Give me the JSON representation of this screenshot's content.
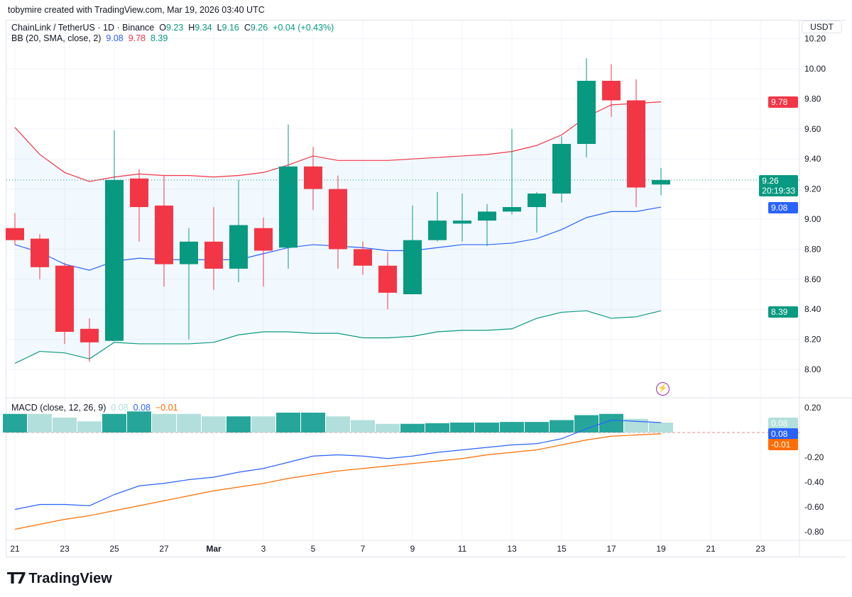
{
  "header": {
    "credit": "tobymire created with TradingView.com, Mar 19, 2026 03:40 UTC"
  },
  "legend": {
    "symbol": "ChainLink / TetherUS · 1D · Binance",
    "o_label": "O",
    "o": "9.23",
    "h_label": "H",
    "h": "9.34",
    "l_label": "L",
    "l": "9.16",
    "c_label": "C",
    "c": "9.26",
    "change": "+0.04 (+0.43%)",
    "bb_label": "BB (20, SMA, close, 2)",
    "bb_mid": "9.08",
    "bb_up": "9.78",
    "bb_low": "8.39",
    "macd_label": "MACD (close, 12, 26, 9)",
    "macd_hist": "0.08",
    "macd_line": "0.08",
    "macd_signal": "−0.01"
  },
  "axis": {
    "currency": "USDT",
    "tags": {
      "upper": "9.78",
      "price": "9.26",
      "countdown": "20:19:33",
      "mid": "9.08",
      "lower": "8.39",
      "macd_hist": "0.08",
      "macd_line": "0.08",
      "macd_signal": "-0.01"
    }
  },
  "logo": {
    "text": "TradingView"
  },
  "colors": {
    "up": "#089981",
    "down": "#f23645",
    "mid": "#2962ff",
    "signal": "#ff6d00",
    "hist_dark": "#26a69a",
    "hist_light": "#b2dfdb"
  },
  "chart_data": [
    {
      "type": "candlestick",
      "title": "ChainLink / TetherUS · 1D · Binance",
      "ylim": [
        7.8,
        10.25
      ],
      "price_ticks": [
        "8.00",
        "8.20",
        "8.40",
        "8.60",
        "8.80",
        "9.00",
        "9.20",
        "9.40",
        "9.60",
        "9.80",
        "10.00",
        "10.20"
      ],
      "x_ticks": [
        "21",
        "23",
        "25",
        "27",
        "Mar",
        "3",
        "5",
        "7",
        "9",
        "11",
        "13",
        "15",
        "17",
        "19",
        "21",
        "23"
      ],
      "dates": [
        "Feb 21",
        "Feb 22",
        "Feb 23",
        "Feb 24",
        "Feb 25",
        "Feb 26",
        "Feb 27",
        "Feb 28",
        "Mar 1",
        "Mar 2",
        "Mar 3",
        "Mar 4",
        "Mar 5",
        "Mar 6",
        "Mar 7",
        "Mar 8",
        "Mar 9",
        "Mar 10",
        "Mar 11",
        "Mar 12",
        "Mar 13",
        "Mar 14",
        "Mar 15",
        "Mar 16",
        "Mar 17",
        "Mar 18",
        "Mar 19"
      ],
      "ohlc": [
        [
          8.94,
          9.04,
          8.83,
          8.86
        ],
        [
          8.87,
          8.9,
          8.6,
          8.68
        ],
        [
          8.69,
          8.71,
          8.17,
          8.25
        ],
        [
          8.27,
          8.34,
          8.05,
          8.18
        ],
        [
          8.19,
          9.59,
          8.19,
          9.26
        ],
        [
          9.27,
          9.33,
          8.85,
          9.08
        ],
        [
          9.09,
          9.29,
          8.55,
          8.7
        ],
        [
          8.7,
          8.94,
          8.2,
          8.85
        ],
        [
          8.85,
          9.08,
          8.53,
          8.67
        ],
        [
          8.67,
          9.26,
          8.58,
          8.96
        ],
        [
          8.94,
          9.01,
          8.55,
          8.79
        ],
        [
          8.81,
          9.63,
          8.67,
          9.35
        ],
        [
          9.35,
          9.48,
          9.06,
          9.2
        ],
        [
          9.2,
          9.29,
          8.67,
          8.8
        ],
        [
          8.8,
          8.85,
          8.63,
          8.69
        ],
        [
          8.69,
          8.78,
          8.4,
          8.51
        ],
        [
          8.5,
          9.09,
          8.5,
          8.86
        ],
        [
          8.86,
          9.18,
          8.85,
          8.99
        ],
        [
          8.97,
          9.17,
          8.85,
          8.99
        ],
        [
          8.99,
          9.1,
          8.82,
          9.05
        ],
        [
          9.05,
          9.6,
          9.03,
          9.08
        ],
        [
          9.08,
          9.18,
          8.91,
          9.17
        ],
        [
          9.17,
          9.55,
          9.11,
          9.5
        ],
        [
          9.5,
          10.07,
          9.41,
          9.92
        ],
        [
          9.92,
          10.03,
          9.68,
          9.79
        ],
        [
          9.79,
          9.93,
          9.08,
          9.21
        ],
        [
          9.23,
          9.34,
          9.16,
          9.26
        ]
      ],
      "bb_upper": [
        9.61,
        9.43,
        9.31,
        9.25,
        9.28,
        9.3,
        9.29,
        9.29,
        9.28,
        9.29,
        9.31,
        9.36,
        9.42,
        9.39,
        9.39,
        9.39,
        9.4,
        9.41,
        9.42,
        9.43,
        9.45,
        9.49,
        9.56,
        9.68,
        9.76,
        9.77,
        9.78
      ],
      "bb_mid": [
        8.83,
        8.78,
        8.7,
        8.66,
        8.72,
        8.74,
        8.73,
        8.73,
        8.73,
        8.73,
        8.77,
        8.81,
        8.83,
        8.82,
        8.81,
        8.79,
        8.79,
        8.81,
        8.83,
        8.83,
        8.84,
        8.87,
        8.93,
        9.01,
        9.05,
        9.05,
        9.08
      ],
      "bb_lower": [
        8.04,
        8.12,
        8.11,
        8.07,
        8.18,
        8.17,
        8.17,
        8.17,
        8.18,
        8.23,
        8.25,
        8.25,
        8.24,
        8.24,
        8.21,
        8.21,
        8.22,
        8.25,
        8.26,
        8.26,
        8.27,
        8.34,
        8.38,
        8.39,
        8.34,
        8.35,
        8.39
      ]
    },
    {
      "type": "macd",
      "ylim": [
        -0.85,
        0.25
      ],
      "ticks": [
        "0.20",
        "-0.20",
        "-0.40",
        "-0.60",
        "-0.80"
      ],
      "histogram": [
        0.15,
        0.15,
        0.12,
        0.09,
        0.15,
        0.17,
        0.15,
        0.15,
        0.13,
        0.13,
        0.13,
        0.16,
        0.16,
        0.13,
        0.1,
        0.07,
        0.07,
        0.075,
        0.08,
        0.08,
        0.085,
        0.085,
        0.1,
        0.14,
        0.15,
        0.11,
        0.08
      ],
      "histogram_dark": [
        1,
        0,
        0,
        0,
        1,
        1,
        0,
        0,
        0,
        1,
        0,
        1,
        1,
        0,
        0,
        0,
        1,
        1,
        1,
        1,
        1,
        1,
        1,
        1,
        1,
        0,
        0
      ],
      "macd": [
        -0.62,
        -0.58,
        -0.58,
        -0.59,
        -0.5,
        -0.43,
        -0.41,
        -0.38,
        -0.36,
        -0.32,
        -0.29,
        -0.24,
        -0.19,
        -0.18,
        -0.19,
        -0.21,
        -0.19,
        -0.16,
        -0.14,
        -0.12,
        -0.1,
        -0.09,
        -0.05,
        0.03,
        0.1,
        0.09,
        0.08
      ],
      "signal": [
        -0.78,
        -0.74,
        -0.7,
        -0.67,
        -0.63,
        -0.59,
        -0.55,
        -0.51,
        -0.47,
        -0.44,
        -0.41,
        -0.37,
        -0.34,
        -0.31,
        -0.29,
        -0.27,
        -0.25,
        -0.23,
        -0.21,
        -0.18,
        -0.16,
        -0.14,
        -0.1,
        -0.06,
        -0.03,
        -0.02,
        -0.01
      ]
    }
  ]
}
